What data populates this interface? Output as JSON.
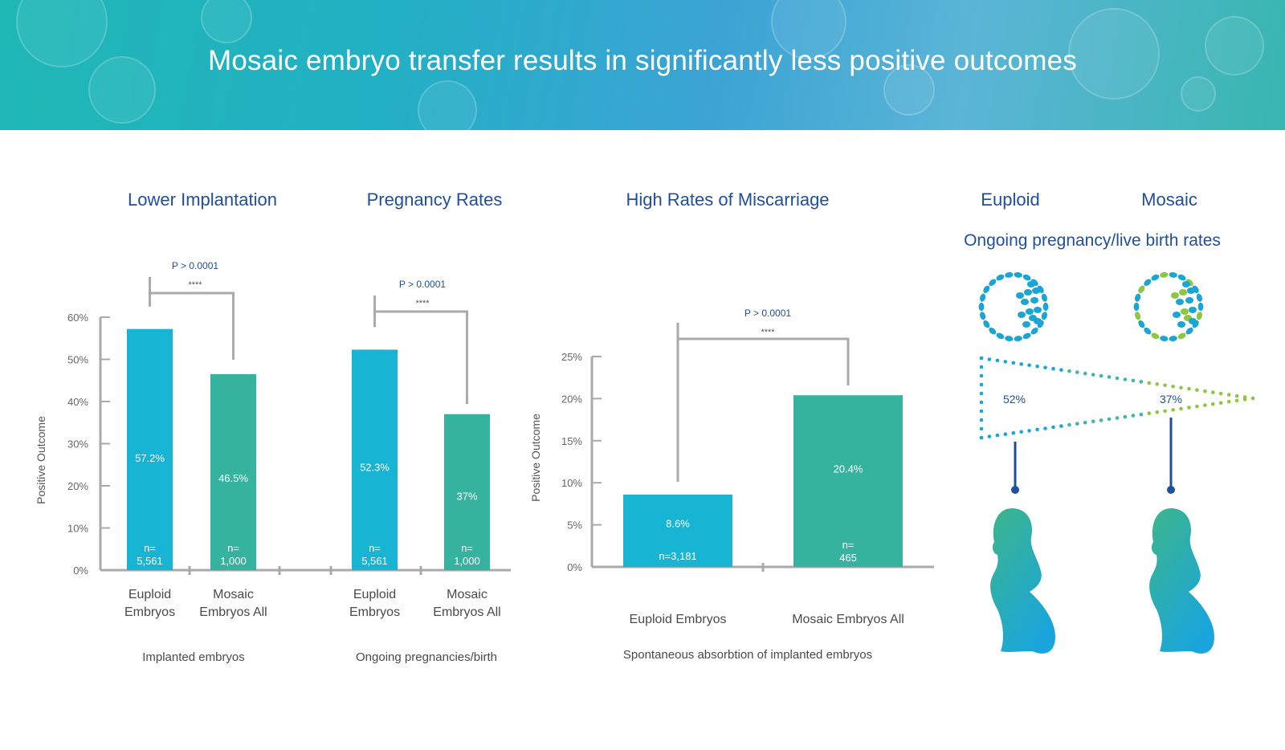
{
  "page": {
    "title": "Mosaic embryo transfer results in significantly less positive outcomes"
  },
  "colors": {
    "euploid": "#18b4d4",
    "mosaic": "#36b39e",
    "axis": "#aaaaaa",
    "title": "#1e4fa1",
    "green_dot": "#8dc63f"
  },
  "chart_data": [
    {
      "type": "bar",
      "title": "Lower Implantation",
      "ylabel": "Positive Outcome",
      "group_label": "Implanted embryos",
      "ylim": [
        0,
        60
      ],
      "yticks": [
        "0%",
        "10%",
        "20%",
        "30%",
        "40%",
        "50%",
        "60%"
      ],
      "categories": [
        "Euploid Embryos",
        "Mosaic Embryos All"
      ],
      "category_lines": [
        [
          "Euploid",
          "Embryos"
        ],
        [
          "Mosaic",
          "Embryos All"
        ]
      ],
      "values": [
        57.2,
        46.5
      ],
      "value_labels": [
        "57.2%",
        "46.5%"
      ],
      "n_labels": [
        [
          "n=",
          "5,561"
        ],
        [
          "n=",
          "1,000"
        ]
      ],
      "significance": {
        "p": "P > 0.0001",
        "stars": "****"
      }
    },
    {
      "type": "bar",
      "title": "Pregnancy Rates",
      "ylabel": "",
      "group_label": "Ongoing pregnancies/birth",
      "ylim": [
        0,
        60
      ],
      "categories": [
        "Euploid Embryos",
        "Mosaic Embryos All"
      ],
      "category_lines": [
        [
          "Euploid",
          "Embryos"
        ],
        [
          "Mosaic",
          "Embryos All"
        ]
      ],
      "values": [
        52.3,
        37
      ],
      "value_labels": [
        "52.3%",
        "37%"
      ],
      "n_labels": [
        [
          "n=",
          "5,561"
        ],
        [
          "n=",
          "1,000"
        ]
      ],
      "significance": {
        "p": "P > 0.0001",
        "stars": "****"
      }
    },
    {
      "type": "bar",
      "title": "High Rates of Miscarriage",
      "ylabel": "Positive Outcome",
      "group_label": "Spontaneous absorbtion of implanted embryos",
      "ylim": [
        0,
        25
      ],
      "yticks": [
        "0%",
        "5%",
        "10%",
        "15%",
        "20%",
        "25%"
      ],
      "categories": [
        "Euploid Embryos",
        "Mosaic Embryos All"
      ],
      "values": [
        8.6,
        20.4
      ],
      "value_labels": [
        "8.6%",
        "20.4%"
      ],
      "n_labels": [
        [
          "n=3,181"
        ],
        [
          "n=",
          "465"
        ]
      ],
      "significance": {
        "p": "P > 0.0001",
        "stars": "****"
      }
    }
  ],
  "infographic": {
    "euploid_label": "Euploid",
    "mosaic_label": "Mosaic",
    "subtitle": "Ongoing pregnancy/live birth rates",
    "euploid_rate": "52%",
    "mosaic_rate": "37%"
  }
}
